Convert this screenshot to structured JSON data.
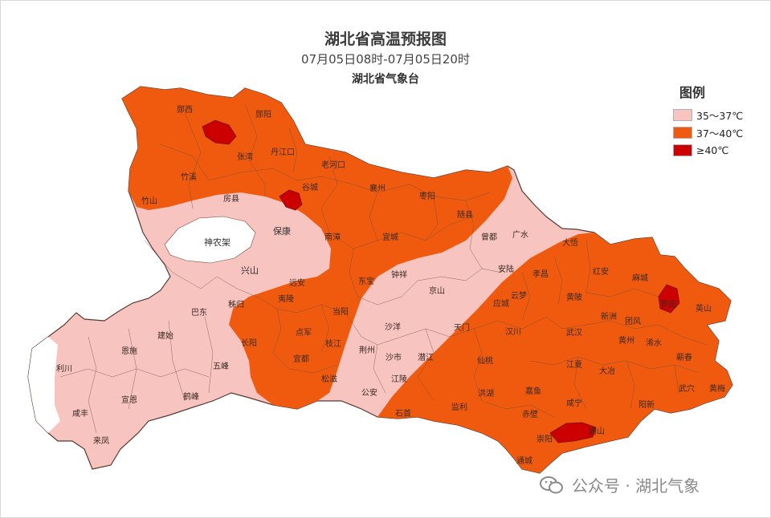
{
  "title": "湖北省高温预报图",
  "subtitle": "07月05日08时-07月05日20时",
  "issuer": "湖北省气象台",
  "legend": {
    "title": "图例",
    "items": [
      {
        "label": "35～37℃",
        "color": "#f7c4c0"
      },
      {
        "label": "37～40℃",
        "color": "#f05a0f"
      },
      {
        "label": "≥40℃",
        "color": "#cc0000"
      }
    ]
  },
  "colors": {
    "zone_35_37": "#f7c4c0",
    "zone_37_40": "#f05a0f",
    "zone_40_plus": "#cc0000",
    "no_heat": "#ffffff",
    "boundary": "#7a4a3a"
  },
  "cities": {
    "shennongjia": "神农架",
    "baokang": "保康",
    "xingshan": "兴山",
    "fangxian": "房县",
    "zhuxi": "竹溪",
    "badong": "巴东",
    "jianshi": "建始",
    "enshi": "恩施",
    "lichuan": "利川",
    "xuanen": "宣恩",
    "xianfeng": "咸丰",
    "laifeng": "来凤",
    "hefeng": "鹤峰",
    "wufeng": "五峰",
    "changyang": "长阳",
    "zhijiang": "枝江",
    "yuanan": "远安",
    "dangyang": "当阳",
    "zhongxiang": "钟祥",
    "jingshan": "京山",
    "shayang": "沙洋",
    "qianjiang": "潜江",
    "shashi": "沙市",
    "jingzhou": "荆州",
    "jiangling": "江陵",
    "gongan": "公安",
    "shishou": "石首",
    "jianli": "监利",
    "honghu": "洪湖",
    "jiayu": "嘉鱼",
    "chibi": "赤壁",
    "tongcheng": "通城",
    "chongyang": "崇阳",
    "tongshan": "通山",
    "xianning": "咸宁",
    "daye": "大冶",
    "yangxin": "阳新",
    "wuxue": "武穴",
    "huangmei": "黄梅",
    "qichun": "蕲春",
    "xishui": "浠水",
    "luotian": "罗田",
    "yingshan": "英山",
    "macheng": "麻城",
    "hongan": "红安",
    "dawu": "大悟",
    "xiaochang": "孝昌",
    "anlu": "安陆",
    "yingcheng": "应城",
    "yunmeng": "云梦",
    "hanchuan": "汉川",
    "tianmen": "天门",
    "xiantao": "仙桃",
    "guangshui": "广水",
    "zengdu": "曾都",
    "suixian": "随县",
    "zaoyang": "枣阳",
    "xiangzhou": "襄州",
    "gucheng": "谷城",
    "yicheng": "宜城",
    "nanzhang": "南漳",
    "laohekou": "老河口",
    "danjiangkou": "丹江口",
    "yunxi": "郧西",
    "yunyang": "郧阳",
    "zhushan": "竹山",
    "zhangwan": "张湾",
    "wuhan": "武汉",
    "jiangxia": "江夏",
    "huangpi": "黄陂",
    "xinzhou": "新洲",
    "huangzhou": "黄州",
    "tuanfeng": "团风",
    "dongbao": "东宝",
    "yidu": "宜都",
    "dianjun": "点军",
    "songzi": "松滋",
    "yiling": "夷陵",
    "zigui": "秭归"
  },
  "watermark": "公众号 · 湖北气象"
}
